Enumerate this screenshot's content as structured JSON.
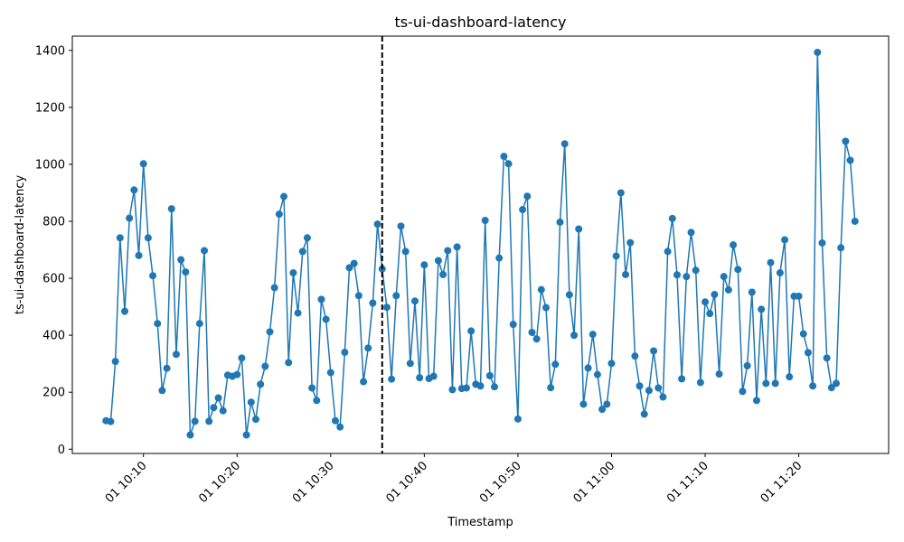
{
  "chart_data": {
    "type": "line",
    "title": "ts-ui-dashboard-latency",
    "xlabel": "Timestamp",
    "ylabel": "ts-ui-dashboard-latency",
    "x_start": "2024-01-01 10:06",
    "x_step_seconds": 30,
    "x_ticks": [
      "01 10:10",
      "01 10:20",
      "01 10:30",
      "01 10:40",
      "01 10:50",
      "01 11:00",
      "01 11:10",
      "01 11:20"
    ],
    "y_ticks": [
      0,
      200,
      400,
      600,
      800,
      1000,
      1200,
      1400
    ],
    "ylim": [
      -15,
      1450
    ],
    "vline": "01 10:35:30",
    "series": [
      {
        "color": "#1f77b4",
        "values": [
          100,
          97,
          308,
          742,
          484,
          811,
          910,
          680,
          1002,
          742,
          609,
          441,
          206,
          284,
          844,
          333,
          665,
          622,
          50,
          98,
          441,
          697,
          98,
          146,
          180,
          135,
          260,
          256,
          262,
          320,
          50,
          165,
          105,
          228,
          291,
          412,
          567,
          825,
          887,
          304,
          619,
          478,
          694,
          742,
          215,
          171,
          526,
          456,
          269,
          100,
          78,
          340,
          637,
          652,
          539,
          237,
          355,
          513,
          790,
          633,
          498,
          246,
          539,
          783,
          694,
          301,
          520,
          251,
          647,
          248,
          256,
          662,
          613,
          697,
          209,
          710,
          213,
          215,
          415,
          228,
          222,
          803,
          258,
          219,
          671,
          1028,
          1002,
          438,
          106,
          841,
          888,
          410,
          387,
          560,
          497,
          216,
          298,
          797,
          1072,
          542,
          400,
          773,
          158,
          285,
          403,
          262,
          140,
          158,
          301,
          678,
          900,
          613,
          725,
          327,
          222,
          123,
          206,
          345,
          215,
          183,
          694,
          810,
          612,
          247,
          606,
          761,
          628,
          234,
          517,
          476,
          543,
          264,
          606,
          559,
          717,
          631,
          203,
          293,
          551,
          171,
          491,
          231,
          655,
          231,
          619,
          735,
          254,
          537,
          537,
          405,
          339,
          222,
          1393,
          724,
          320,
          216,
          231,
          707,
          1081,
          1014,
          800
        ]
      }
    ]
  }
}
